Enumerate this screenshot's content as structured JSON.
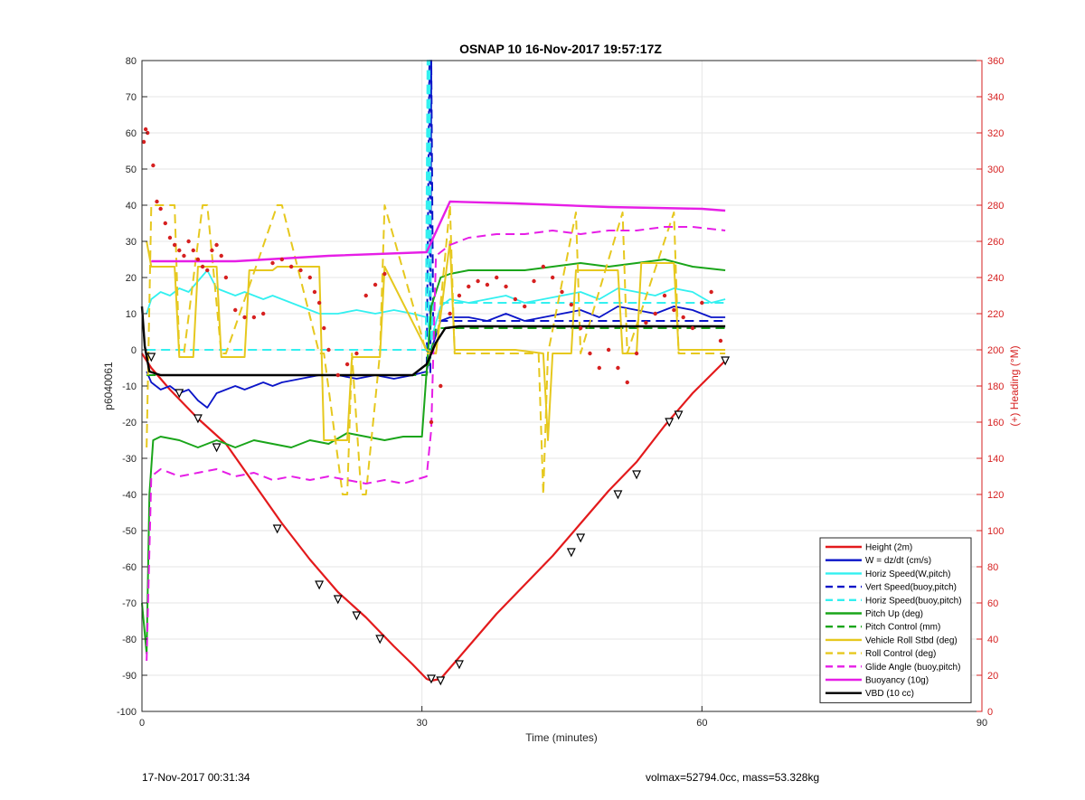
{
  "chart_data": {
    "type": "line",
    "title": "OSNAP 10 16-Nov-2017 19:57:17Z",
    "xlabel": "Time (minutes)",
    "ylabel": "p6040061",
    "y2label": "(+) Heading (°M)",
    "xlim": [
      0,
      90
    ],
    "ylim": [
      -100,
      80
    ],
    "y2lim": [
      0,
      360
    ],
    "xticks": [
      "0",
      "30",
      "60",
      "90"
    ],
    "yticks": [
      "-100",
      "-90",
      "-80",
      "-70",
      "-60",
      "-50",
      "-40",
      "-30",
      "-20",
      "-10",
      "0",
      "10",
      "20",
      "30",
      "40",
      "50",
      "60",
      "70",
      "80"
    ],
    "y2ticks": [
      "0",
      "20",
      "40",
      "60",
      "80",
      "100",
      "120",
      "140",
      "160",
      "180",
      "200",
      "220",
      "240",
      "260",
      "280",
      "300",
      "320",
      "340",
      "360"
    ],
    "grid": true,
    "legend_position": "bottom-right",
    "colors": {
      "red": "#e31a1c",
      "blue": "#0a14c8",
      "cyan": "#33f0f0",
      "green": "#1aa51a",
      "gold": "#e6c81e",
      "magenta": "#e61ee6",
      "black": "#000000",
      "heading_axis": "#d62020",
      "grid": "#e6e6e6"
    },
    "series": [
      {
        "name": "Height (2m)",
        "color": "#e31a1c",
        "style": "solid",
        "width": 2.2,
        "x": [
          0,
          1,
          3,
          6,
          9,
          12,
          15,
          18,
          21,
          24,
          27,
          29,
          30.5,
          31,
          32,
          33,
          35,
          38,
          41,
          44,
          47,
          50,
          53,
          56,
          59,
          62.5
        ],
        "y": [
          -1,
          -5,
          -11,
          -19,
          -26,
          -37,
          -48,
          -58,
          -67,
          -74,
          -82,
          -87,
          -91,
          -91.5,
          -91,
          -88,
          -82,
          -73,
          -65,
          -57,
          -48,
          -39,
          -31,
          -21,
          -12,
          -3
        ]
      },
      {
        "name": "W = dz/dt (cm/s)",
        "color": "#0a14c8",
        "style": "solid",
        "width": 1.8,
        "x": [
          0.5,
          1,
          2,
          3,
          4,
          5,
          6,
          7,
          8,
          9,
          10,
          11,
          12,
          13,
          14,
          15,
          17,
          19,
          21,
          23,
          25,
          27,
          29,
          30.5,
          31,
          32,
          33,
          35,
          37,
          39,
          41,
          43,
          45,
          47,
          49,
          51,
          53,
          55,
          57,
          59,
          61,
          62.5
        ],
        "y": [
          -6,
          -9,
          -11,
          -10,
          -12,
          -11,
          -14,
          -16,
          -12,
          -11,
          -10,
          -11,
          -10,
          -9,
          -10,
          -9,
          -8,
          -7,
          -7,
          -8,
          -7,
          -8,
          -7,
          -6,
          0,
          8,
          9,
          9,
          8,
          10,
          8,
          9,
          10,
          11,
          9,
          12,
          11,
          10,
          12,
          11,
          9,
          9
        ]
      },
      {
        "name": "Horiz Speed(W,pitch)",
        "color": "#33f0f0",
        "style": "solid",
        "width": 1.8,
        "x": [
          0.5,
          1,
          2,
          3,
          4,
          5,
          6,
          7,
          8,
          9,
          10,
          11,
          12,
          13,
          14,
          15,
          17,
          19,
          21,
          23,
          25,
          27,
          29,
          30.5,
          31,
          32,
          33,
          35,
          37,
          39,
          41,
          43,
          45,
          47,
          49,
          51,
          53,
          55,
          57,
          59,
          61,
          62.5
        ],
        "y": [
          10,
          14,
          16,
          15,
          17,
          16,
          19,
          22,
          17,
          16,
          15,
          16,
          15,
          14,
          15,
          14,
          12,
          10,
          10,
          11,
          10,
          11,
          10,
          9,
          3,
          12,
          14,
          13,
          14,
          15,
          13,
          14,
          15,
          16,
          14,
          17,
          16,
          15,
          17,
          16,
          13,
          14
        ]
      },
      {
        "name": "Vert Speed(buoy,pitch)",
        "color": "#0a14c8",
        "style": "dashed",
        "width": 2,
        "x": [
          0.5,
          30.5,
          30.8,
          30.9,
          31.0,
          31.2,
          62.5
        ],
        "y": [
          -7,
          -7,
          80,
          -7,
          80,
          8,
          8
        ]
      },
      {
        "name": "Horiz Speed(buoy,pitch)",
        "color": "#33f0f0",
        "style": "dashed",
        "width": 2,
        "x": [
          0.5,
          30.4,
          30.6,
          30.7,
          30.8,
          31.0,
          31.2,
          62.5
        ],
        "y": [
          0,
          0,
          80,
          0,
          80,
          0,
          13,
          13
        ]
      },
      {
        "name": "Pitch Up (deg)",
        "color": "#1aa51a",
        "style": "solid",
        "width": 2,
        "x": [
          0,
          0.5,
          0.8,
          1.2,
          2,
          4,
          6,
          8,
          10,
          12,
          14,
          16,
          18,
          20,
          22,
          24,
          26,
          28,
          30,
          31,
          32,
          33,
          35,
          38,
          41,
          44,
          47,
          50,
          53,
          56,
          59,
          62.5
        ],
        "y": [
          -70,
          -84,
          -40,
          -25,
          -24,
          -25,
          -27,
          -25,
          -27,
          -25,
          -26,
          -27,
          -25,
          -26,
          -23,
          -24,
          -25,
          -24,
          -24,
          12,
          20,
          21,
          22,
          22,
          22,
          23,
          24,
          23,
          24,
          25,
          23,
          22
        ]
      },
      {
        "name": "Pitch Control (mm)",
        "color": "#1aa51a",
        "style": "dashed",
        "width": 2,
        "x": [
          0.5,
          30.5,
          31.5,
          62.5
        ],
        "y": [
          -7,
          -7,
          6,
          6
        ]
      },
      {
        "name": "Vehicle Roll Stbd (deg)",
        "color": "#e6c81e",
        "style": "solid",
        "width": 2,
        "x": [
          0.5,
          1,
          2,
          3.5,
          4,
          5.5,
          6,
          8,
          8.5,
          11,
          11.5,
          14,
          14.5,
          19,
          19.5,
          22,
          22.5,
          25.5,
          26,
          30.5,
          31.5,
          33,
          33.5,
          40,
          43,
          43.5,
          44,
          46,
          46.5,
          51,
          51.5,
          53,
          53.5,
          57,
          57.5,
          62.5
        ],
        "y": [
          30,
          23,
          23,
          23,
          -2,
          -2,
          23,
          23,
          -2,
          -2,
          22,
          22,
          23,
          23,
          -25,
          -25,
          -2,
          -2,
          23,
          0,
          -1,
          30,
          0,
          0,
          -1,
          -25,
          -1,
          -1,
          22,
          22,
          -1,
          -1,
          24,
          24,
          0,
          0
        ]
      },
      {
        "name": "Roll Control (deg)",
        "color": "#e6c81e",
        "style": "dashed",
        "width": 2,
        "x": [
          0.5,
          1,
          1.5,
          3.5,
          4,
          4.5,
          6.5,
          7,
          8.5,
          9,
          14.5,
          15,
          19,
          19.5,
          21.5,
          22,
          22.5,
          23.5,
          24,
          25.5,
          26,
          30.5,
          31.5,
          33,
          33.5,
          42.5,
          43,
          43.5,
          46.5,
          47,
          51.5,
          52,
          57,
          57.5,
          62.5
        ],
        "y": [
          -27,
          40,
          40,
          40,
          -1,
          -1,
          40,
          40,
          -1,
          -1,
          40,
          40,
          -1,
          -1,
          -40,
          -40,
          -1,
          -40,
          -40,
          -1,
          40,
          -1,
          -1,
          40,
          -1,
          -1,
          -40,
          -1,
          38,
          -1,
          38,
          -1,
          38,
          -1,
          -1
        ]
      },
      {
        "name": "Glide Angle (buoy,pitch)",
        "color": "#e61ee6",
        "style": "dashed",
        "width": 2,
        "x": [
          0.5,
          1,
          2,
          4,
          6,
          8,
          10,
          12,
          14,
          16,
          18,
          20,
          22,
          24,
          26,
          28,
          30.5,
          31,
          31.5,
          33,
          35,
          38,
          41,
          44,
          47,
          50,
          53,
          56,
          59,
          62.5
        ],
        "y": [
          -86,
          -35,
          -33,
          -35,
          -34,
          -33,
          -35,
          -34,
          -36,
          -35,
          -36,
          -35,
          -36,
          -37,
          -36,
          -37,
          -35,
          -22,
          26,
          29,
          31,
          32,
          32,
          33,
          32,
          33,
          33,
          34,
          34,
          33
        ]
      },
      {
        "name": "Buoyancy (10g)",
        "color": "#e61ee6",
        "style": "solid",
        "width": 2.4,
        "x": [
          1,
          10,
          20,
          30.5,
          33,
          40,
          50,
          60,
          62.5
        ],
        "y": [
          24.5,
          24.5,
          26,
          27,
          41,
          40.5,
          39.5,
          39,
          38.5
        ]
      },
      {
        "name": "VBD (10 cc)",
        "color": "#000000",
        "style": "solid",
        "width": 2.4,
        "x": [
          0,
          0.3,
          0.8,
          2,
          5,
          10,
          20,
          29,
          30.5,
          31.5,
          32.5,
          34,
          45,
          62.5
        ],
        "y": [
          12,
          1,
          -6,
          -7,
          -7,
          -7,
          -7,
          -7,
          -4,
          2,
          6,
          6.5,
          6.5,
          6.5
        ]
      }
    ],
    "heading_points": {
      "name": "(+) Heading (°M)",
      "axis": "right",
      "color": "#d62020",
      "x": [
        0.2,
        0.4,
        0.6,
        1.2,
        1.6,
        2,
        2.5,
        3,
        3.5,
        4,
        4.5,
        5,
        5.5,
        6,
        6.5,
        7,
        7.5,
        8,
        8.5,
        9,
        10,
        11,
        12,
        13,
        14,
        15,
        16,
        17,
        18,
        18.5,
        19,
        19.5,
        20,
        21,
        22,
        23,
        24,
        25,
        26,
        31,
        32,
        33,
        34,
        35,
        36,
        37,
        38,
        39,
        40,
        41,
        42,
        43,
        44,
        45,
        46,
        47,
        48,
        49,
        50,
        51,
        52,
        53,
        54,
        55,
        56,
        57,
        58,
        59,
        60,
        61,
        62
      ],
      "y": [
        315,
        322,
        320,
        302,
        282,
        278,
        270,
        262,
        258,
        255,
        252,
        260,
        255,
        250,
        246,
        244,
        255,
        258,
        252,
        240,
        222,
        218,
        218,
        220,
        248,
        250,
        246,
        244,
        240,
        232,
        226,
        212,
        200,
        186,
        192,
        198,
        230,
        236,
        242,
        160,
        180,
        220,
        230,
        235,
        238,
        236,
        240,
        235,
        228,
        224,
        238,
        246,
        240,
        232,
        225,
        212,
        198,
        190,
        200,
        190,
        182,
        198,
        215,
        220,
        230,
        222,
        218,
        212,
        226,
        232,
        205
      ]
    },
    "markers": {
      "name": "triangles",
      "color": "#000000",
      "x": [
        1,
        4,
        6,
        8,
        14.5,
        19,
        21,
        23,
        25.5,
        31,
        32,
        34,
        46,
        47,
        51,
        53,
        56.5,
        57.5,
        62.5
      ],
      "y": [
        -2,
        -12,
        -19,
        -27,
        -49.5,
        -65,
        -69,
        -73.5,
        -80,
        -91,
        -91.5,
        -87,
        -56,
        -52,
        -40,
        -34.5,
        -20,
        -18,
        -3
      ]
    },
    "legend": [
      "Height (2m)",
      "W = dz/dt (cm/s)",
      "Horiz Speed(W,pitch)",
      "Vert Speed(buoy,pitch)",
      "Horiz Speed(buoy,pitch)",
      "Pitch Up (deg)",
      "Pitch Control (mm)",
      "Vehicle Roll Stbd (deg)",
      "Roll Control (deg)",
      "Glide Angle (buoy,pitch)",
      "Buoyancy (10g)",
      "VBD (10 cc)"
    ]
  },
  "footer": {
    "left": "17-Nov-2017 00:31:34",
    "right": "volmax=52794.0cc, mass=53.328kg"
  }
}
